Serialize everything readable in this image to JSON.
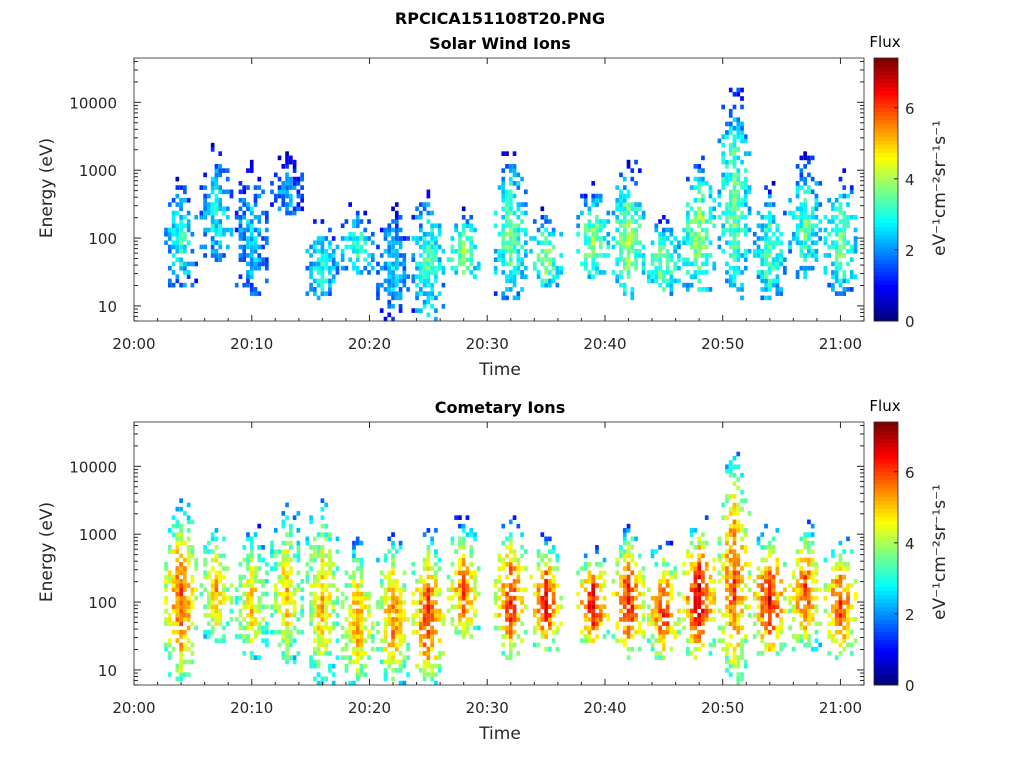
{
  "figure_title": "RPCICA151108T20.PNG",
  "colorbar_units": "eV⁻¹cm⁻²sr⁻¹s⁻¹",
  "chart_data": [
    {
      "type": "heatmap",
      "title": "Solar Wind Ions",
      "xlabel": "Time",
      "ylabel": "Energy (eV)",
      "yscale": "log",
      "ylim": [
        6,
        45000
      ],
      "x_tick_labels": [
        "20:00",
        "20:10",
        "20:20",
        "20:30",
        "20:40",
        "20:50",
        "21:00"
      ],
      "y_tick_values": [
        10,
        100,
        1000,
        10000
      ],
      "y_tick_labels": [
        "10",
        "100",
        "1000",
        "10000"
      ],
      "colorbar": {
        "title": "Flux",
        "range": [
          0,
          7.4
        ],
        "ticks": [
          "0",
          "2",
          "4",
          "6"
        ],
        "colormap": "jet"
      },
      "bursts": [
        {
          "t": "20:02",
          "e_lo": 60,
          "e_hi": 70,
          "peak": 2.5
        },
        {
          "t": "20:04",
          "e_lo": 20,
          "e_hi": 700,
          "peak": 3.0
        },
        {
          "t": "20:07",
          "e_lo": 45,
          "e_hi": 2000,
          "peak": 2.8
        },
        {
          "t": "20:10",
          "e_lo": 15,
          "e_hi": 1100,
          "peak": 2.5
        },
        {
          "t": "20:13",
          "e_lo": 200,
          "e_hi": 1600,
          "peak": 2.2
        },
        {
          "t": "20:16",
          "e_lo": 12,
          "e_hi": 200,
          "peak": 3.0
        },
        {
          "t": "20:19",
          "e_lo": 30,
          "e_hi": 300,
          "peak": 3.2
        },
        {
          "t": "20:22",
          "e_lo": 6,
          "e_hi": 300,
          "peak": 2.5
        },
        {
          "t": "20:25",
          "e_lo": 6,
          "e_hi": 500,
          "peak": 3.2
        },
        {
          "t": "20:28",
          "e_lo": 25,
          "e_hi": 250,
          "peak": 3.8
        },
        {
          "t": "20:32",
          "e_lo": 12,
          "e_hi": 1500,
          "peak": 3.6
        },
        {
          "t": "20:35",
          "e_lo": 20,
          "e_hi": 250,
          "peak": 3.8
        },
        {
          "t": "20:39",
          "e_lo": 25,
          "e_hi": 550,
          "peak": 3.8
        },
        {
          "t": "20:42",
          "e_lo": 12,
          "e_hi": 1200,
          "peak": 4.0
        },
        {
          "t": "20:45",
          "e_lo": 15,
          "e_hi": 200,
          "peak": 3.8
        },
        {
          "t": "20:48",
          "e_lo": 15,
          "e_hi": 1400,
          "peak": 4.0
        },
        {
          "t": "20:51",
          "e_lo": 12,
          "e_hi": 14000,
          "peak": 3.6
        },
        {
          "t": "20:54",
          "e_lo": 12,
          "e_hi": 600,
          "peak": 3.4
        },
        {
          "t": "20:57",
          "e_lo": 25,
          "e_hi": 1500,
          "peak": 3.4
        },
        {
          "t": "21:00",
          "e_lo": 15,
          "e_hi": 900,
          "peak": 3.6
        }
      ]
    },
    {
      "type": "heatmap",
      "title": "Cometary Ions",
      "xlabel": "Time",
      "ylabel": "Energy (eV)",
      "yscale": "log",
      "ylim": [
        6,
        45000
      ],
      "x_tick_labels": [
        "20:00",
        "20:10",
        "20:20",
        "20:30",
        "20:40",
        "20:50",
        "21:00"
      ],
      "y_tick_values": [
        10,
        100,
        1000,
        10000
      ],
      "y_tick_labels": [
        "10",
        "100",
        "1000",
        "10000"
      ],
      "colorbar": {
        "title": "Flux",
        "range": [
          0,
          7.4
        ],
        "ticks": [
          "0",
          "2",
          "4",
          "6"
        ],
        "colormap": "jet"
      },
      "bursts": [
        {
          "t": "20:02",
          "e_lo": 60,
          "e_hi": 80,
          "peak": 2.8
        },
        {
          "t": "20:04",
          "e_lo": 7,
          "e_hi": 3000,
          "peak": 6.0
        },
        {
          "t": "20:07",
          "e_lo": 25,
          "e_hi": 1500,
          "peak": 5.2
        },
        {
          "t": "20:10",
          "e_lo": 15,
          "e_hi": 1200,
          "peak": 5.0
        },
        {
          "t": "20:13",
          "e_lo": 12,
          "e_hi": 2500,
          "peak": 5.0
        },
        {
          "t": "20:16",
          "e_lo": 6,
          "e_hi": 3000,
          "peak": 5.2
        },
        {
          "t": "20:19",
          "e_lo": 6,
          "e_hi": 800,
          "peak": 5.4
        },
        {
          "t": "20:22",
          "e_lo": 6,
          "e_hi": 900,
          "peak": 5.6
        },
        {
          "t": "20:25",
          "e_lo": 6,
          "e_hi": 1000,
          "peak": 6.2
        },
        {
          "t": "20:28",
          "e_lo": 25,
          "e_hi": 1500,
          "peak": 5.8
        },
        {
          "t": "20:32",
          "e_lo": 15,
          "e_hi": 1500,
          "peak": 6.2
        },
        {
          "t": "20:35",
          "e_lo": 20,
          "e_hi": 900,
          "peak": 6.4
        },
        {
          "t": "20:39",
          "e_lo": 25,
          "e_hi": 600,
          "peak": 6.6
        },
        {
          "t": "20:42",
          "e_lo": 15,
          "e_hi": 1200,
          "peak": 6.4
        },
        {
          "t": "20:45",
          "e_lo": 15,
          "e_hi": 700,
          "peak": 6.2
        },
        {
          "t": "20:48",
          "e_lo": 15,
          "e_hi": 1500,
          "peak": 6.8
        },
        {
          "t": "20:51",
          "e_lo": 6,
          "e_hi": 14000,
          "peak": 6.0
        },
        {
          "t": "20:54",
          "e_lo": 15,
          "e_hi": 1200,
          "peak": 6.6
        },
        {
          "t": "20:57",
          "e_lo": 20,
          "e_hi": 1500,
          "peak": 6.0
        },
        {
          "t": "21:00",
          "e_lo": 15,
          "e_hi": 900,
          "peak": 6.2
        }
      ]
    }
  ]
}
